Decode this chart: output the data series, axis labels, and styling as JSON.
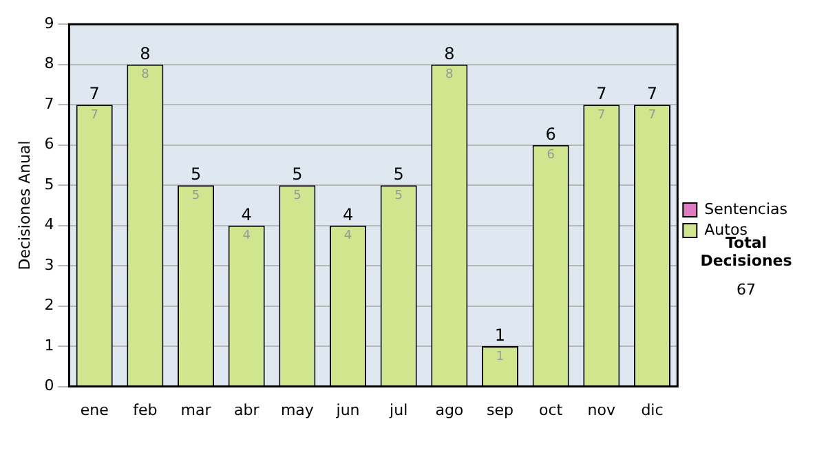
{
  "chart_data": {
    "type": "bar",
    "ylabel": "Decisiones Anual",
    "categories": [
      "ene",
      "feb",
      "mar",
      "abr",
      "may",
      "jun",
      "jul",
      "ago",
      "sep",
      "oct",
      "nov",
      "dic"
    ],
    "series": [
      {
        "name": "Sentencias",
        "color": "#e07bc0",
        "values": [
          0,
          0,
          0,
          0,
          0,
          0,
          0,
          0,
          0,
          0,
          0,
          0
        ]
      },
      {
        "name": "Autos",
        "color": "#cfe68f",
        "values": [
          7,
          8,
          5,
          4,
          5,
          4,
          5,
          8,
          1,
          6,
          7,
          7
        ],
        "value_labels": [
          "7",
          "8",
          "5",
          "4",
          "5",
          "4",
          "5",
          "8",
          "1",
          "6",
          "7",
          "7"
        ]
      }
    ],
    "stacked": true,
    "totals": [
      "7",
      "8",
      "5",
      "4",
      "5",
      "4",
      "5",
      "8",
      "1",
      "6",
      "7",
      "7"
    ],
    "ylim": [
      0,
      9
    ],
    "yticks": [
      0,
      1,
      2,
      3,
      4,
      5,
      6,
      7,
      8,
      9
    ],
    "grid": "y",
    "legend": "right",
    "annotations": [
      "Total Decisiones",
      "67"
    ]
  }
}
